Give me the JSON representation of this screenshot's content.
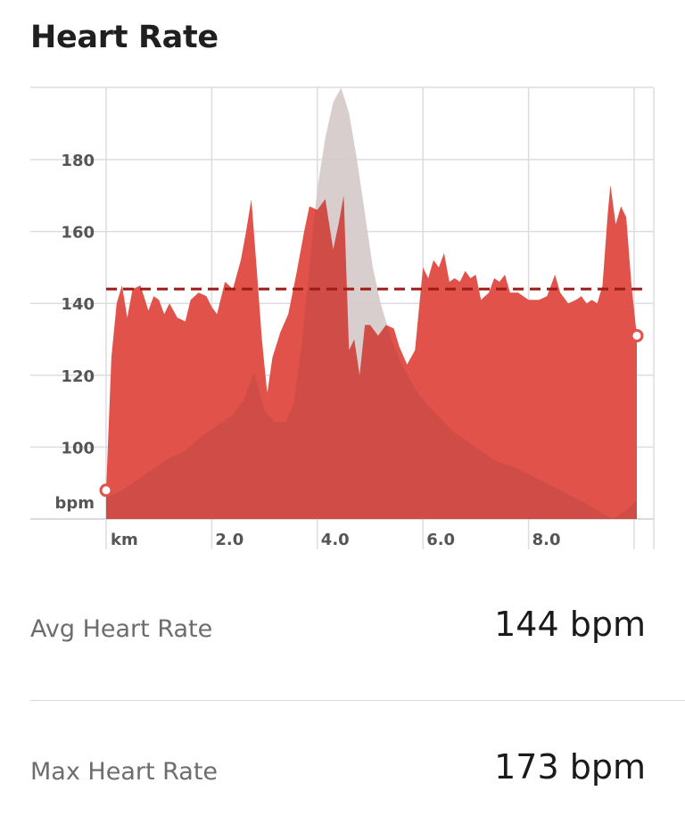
{
  "title": "Heart Rate",
  "chart_data": {
    "type": "area",
    "y_axis_label": "bpm",
    "x_axis_label": "km",
    "yticks": [
      100,
      120,
      140,
      160,
      180
    ],
    "xticks": [
      "2.0",
      "4.0",
      "6.0",
      "8.0"
    ],
    "ylim": [
      80,
      200
    ],
    "xlim": [
      0,
      10.4
    ],
    "grid": true,
    "average": 144,
    "series": [
      {
        "kind": "heart_rate",
        "color": "#e0524a",
        "points": [
          [
            0.0,
            88
          ],
          [
            0.1,
            125
          ],
          [
            0.2,
            140
          ],
          [
            0.3,
            145
          ],
          [
            0.4,
            136
          ],
          [
            0.5,
            144
          ],
          [
            0.65,
            145
          ],
          [
            0.8,
            138
          ],
          [
            0.9,
            142
          ],
          [
            1.0,
            141
          ],
          [
            1.1,
            137
          ],
          [
            1.2,
            140
          ],
          [
            1.35,
            136
          ],
          [
            1.5,
            135
          ],
          [
            1.6,
            141
          ],
          [
            1.75,
            143
          ],
          [
            1.9,
            142
          ],
          [
            2.0,
            139
          ],
          [
            2.1,
            137
          ],
          [
            2.25,
            146
          ],
          [
            2.4,
            144
          ],
          [
            2.55,
            152
          ],
          [
            2.65,
            160
          ],
          [
            2.75,
            169
          ],
          [
            2.85,
            150
          ],
          [
            2.95,
            130
          ],
          [
            3.05,
            115
          ],
          [
            3.15,
            125
          ],
          [
            3.3,
            132
          ],
          [
            3.45,
            137
          ],
          [
            3.6,
            148
          ],
          [
            3.75,
            160
          ],
          [
            3.85,
            167
          ],
          [
            4.0,
            166
          ],
          [
            4.15,
            169
          ],
          [
            4.3,
            155
          ],
          [
            4.4,
            162
          ],
          [
            4.5,
            170
          ],
          [
            4.6,
            127
          ],
          [
            4.7,
            130
          ],
          [
            4.8,
            120
          ],
          [
            4.9,
            134
          ],
          [
            5.0,
            134
          ],
          [
            5.15,
            131
          ],
          [
            5.3,
            134
          ],
          [
            5.45,
            133
          ],
          [
            5.55,
            128
          ],
          [
            5.7,
            123
          ],
          [
            5.85,
            127
          ],
          [
            6.0,
            150
          ],
          [
            6.1,
            147
          ],
          [
            6.2,
            152
          ],
          [
            6.3,
            150
          ],
          [
            6.4,
            154
          ],
          [
            6.5,
            146
          ],
          [
            6.6,
            147
          ],
          [
            6.7,
            146
          ],
          [
            6.8,
            149
          ],
          [
            6.9,
            147
          ],
          [
            7.0,
            148
          ],
          [
            7.1,
            141
          ],
          [
            7.25,
            143
          ],
          [
            7.35,
            147
          ],
          [
            7.45,
            146
          ],
          [
            7.55,
            148
          ],
          [
            7.65,
            143
          ],
          [
            7.8,
            143
          ],
          [
            8.0,
            141
          ],
          [
            8.2,
            141
          ],
          [
            8.35,
            142
          ],
          [
            8.5,
            148
          ],
          [
            8.6,
            143
          ],
          [
            8.75,
            140
          ],
          [
            8.9,
            141
          ],
          [
            9.0,
            142
          ],
          [
            9.1,
            140
          ],
          [
            9.2,
            141
          ],
          [
            9.3,
            140
          ],
          [
            9.4,
            145
          ],
          [
            9.5,
            165
          ],
          [
            9.55,
            173
          ],
          [
            9.65,
            162
          ],
          [
            9.75,
            167
          ],
          [
            9.85,
            164
          ],
          [
            9.95,
            145
          ],
          [
            10.05,
            131
          ]
        ]
      },
      {
        "kind": "elevation",
        "color": "#9e9e9e",
        "points": [
          [
            0.0,
            86
          ],
          [
            0.3,
            88
          ],
          [
            0.6,
            91
          ],
          [
            0.9,
            94
          ],
          [
            1.2,
            97
          ],
          [
            1.5,
            99
          ],
          [
            1.8,
            103
          ],
          [
            2.1,
            106
          ],
          [
            2.4,
            109
          ],
          [
            2.6,
            113
          ],
          [
            2.8,
            121
          ],
          [
            3.0,
            110
          ],
          [
            3.2,
            107
          ],
          [
            3.4,
            107
          ],
          [
            3.55,
            112
          ],
          [
            3.7,
            128
          ],
          [
            3.85,
            150
          ],
          [
            4.0,
            172
          ],
          [
            4.15,
            186
          ],
          [
            4.3,
            196
          ],
          [
            4.45,
            200
          ],
          [
            4.6,
            193
          ],
          [
            4.75,
            180
          ],
          [
            4.9,
            165
          ],
          [
            5.05,
            150
          ],
          [
            5.2,
            140
          ],
          [
            5.4,
            130
          ],
          [
            5.6,
            123
          ],
          [
            5.9,
            115
          ],
          [
            6.2,
            110
          ],
          [
            6.6,
            104
          ],
          [
            7.0,
            100
          ],
          [
            7.4,
            96
          ],
          [
            7.8,
            94
          ],
          [
            8.2,
            91
          ],
          [
            8.6,
            88
          ],
          [
            9.0,
            85
          ],
          [
            9.35,
            82
          ],
          [
            9.6,
            80
          ],
          [
            9.8,
            82
          ],
          [
            10.05,
            85
          ]
        ]
      }
    ]
  },
  "stats": [
    {
      "label": "Avg Heart Rate",
      "value": "144 bpm"
    },
    {
      "label": "Max Heart Rate",
      "value": "173 bpm"
    }
  ]
}
